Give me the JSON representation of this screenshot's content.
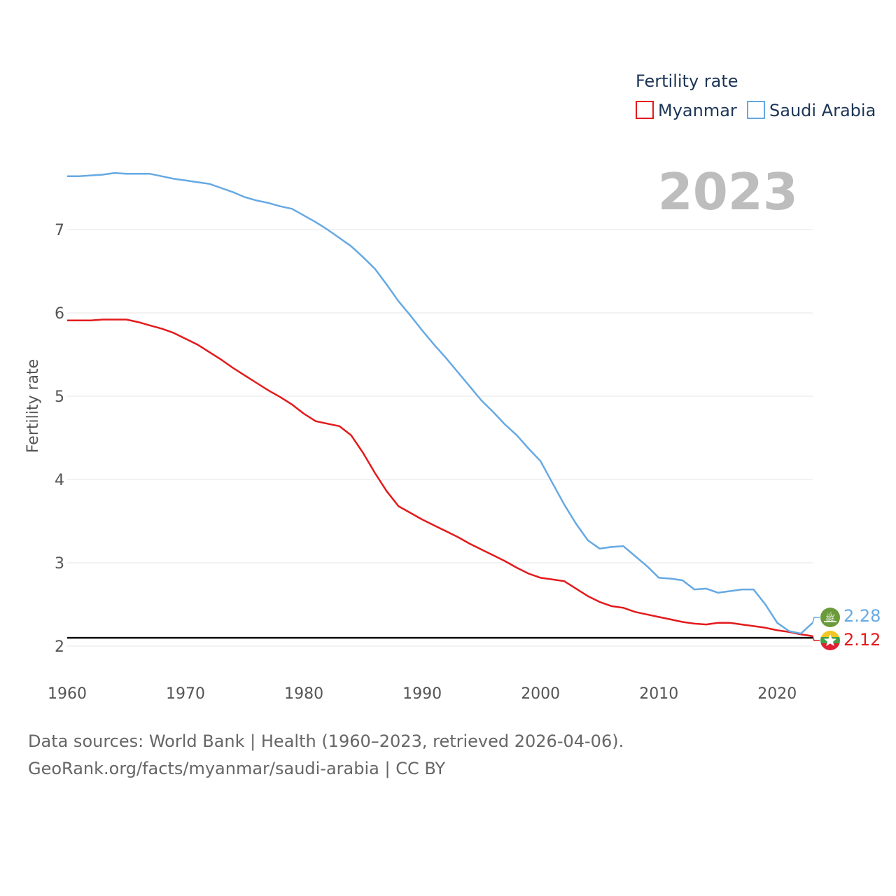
{
  "chart_data": {
    "type": "line",
    "title": "Fertility rate",
    "year_label": "2023",
    "xlabel": "",
    "ylabel": "Fertility rate",
    "xlim": [
      1960,
      2023
    ],
    "ylim": [
      2,
      7.7
    ],
    "x_ticks": [
      1960,
      1970,
      1980,
      1990,
      2000,
      2010,
      2020
    ],
    "y_ticks": [
      2,
      3,
      4,
      5,
      6,
      7
    ],
    "reference_line": 2.1,
    "grid": true,
    "legend_position": "top-right",
    "x": [
      1960,
      1961,
      1962,
      1963,
      1964,
      1965,
      1966,
      1967,
      1968,
      1969,
      1970,
      1971,
      1972,
      1973,
      1974,
      1975,
      1976,
      1977,
      1978,
      1979,
      1980,
      1981,
      1982,
      1983,
      1984,
      1985,
      1986,
      1987,
      1988,
      1989,
      1990,
      1991,
      1992,
      1993,
      1994,
      1995,
      1996,
      1997,
      1998,
      1999,
      2000,
      2001,
      2002,
      2003,
      2004,
      2005,
      2006,
      2007,
      2008,
      2009,
      2010,
      2011,
      2012,
      2013,
      2014,
      2015,
      2016,
      2017,
      2018,
      2019,
      2020,
      2021,
      2022,
      2023
    ],
    "series": [
      {
        "name": "Myanmar",
        "color": "#e31a1c",
        "end_label": "2.12",
        "values": [
          5.91,
          5.91,
          5.91,
          5.92,
          5.92,
          5.92,
          5.89,
          5.85,
          5.81,
          5.76,
          5.69,
          5.62,
          5.53,
          5.44,
          5.34,
          5.25,
          5.16,
          5.07,
          4.99,
          4.9,
          4.79,
          4.7,
          4.67,
          4.64,
          4.53,
          4.32,
          4.08,
          3.86,
          3.68,
          3.6,
          3.52,
          3.45,
          3.38,
          3.31,
          3.23,
          3.16,
          3.09,
          3.02,
          2.94,
          2.87,
          2.82,
          2.8,
          2.78,
          2.69,
          2.6,
          2.53,
          2.48,
          2.46,
          2.41,
          2.38,
          2.35,
          2.32,
          2.29,
          2.27,
          2.26,
          2.28,
          2.28,
          2.26,
          2.24,
          2.22,
          2.19,
          2.17,
          2.14,
          2.12
        ]
      },
      {
        "name": "Saudi Arabia",
        "color": "#66a9e3",
        "end_label": "2.28",
        "values": [
          7.64,
          7.64,
          7.65,
          7.66,
          7.68,
          7.67,
          7.67,
          7.67,
          7.64,
          7.61,
          7.59,
          7.57,
          7.55,
          7.5,
          7.45,
          7.39,
          7.35,
          7.32,
          7.28,
          7.25,
          7.17,
          7.09,
          7.0,
          6.9,
          6.8,
          6.67,
          6.53,
          6.34,
          6.14,
          5.97,
          5.79,
          5.62,
          5.46,
          5.29,
          5.12,
          4.95,
          4.81,
          4.66,
          4.53,
          4.37,
          4.22,
          3.96,
          3.7,
          3.47,
          3.27,
          3.17,
          3.19,
          3.2,
          3.08,
          2.96,
          2.82,
          2.81,
          2.79,
          2.68,
          2.69,
          2.64,
          2.66,
          2.68,
          2.68,
          2.5,
          2.28,
          2.18,
          2.15,
          2.28
        ]
      }
    ]
  },
  "footer": {
    "line1": "Data sources: World Bank | Health (1960–2023, retrieved 2026-04-06).",
    "line2": "GeoRank.org/facts/myanmar/saudi-arabia | CC BY"
  }
}
